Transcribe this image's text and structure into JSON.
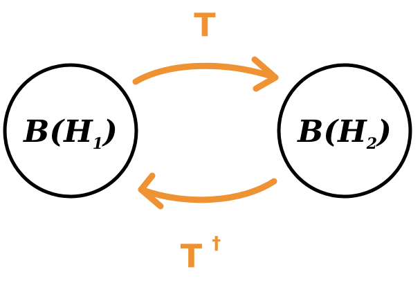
{
  "colors": {
    "node_stroke": "#000000",
    "arrow": "#EE9233"
  },
  "nodes": [
    {
      "id": "h1",
      "label_main": "B(H",
      "label_sub": "1",
      "label_close": ")"
    },
    {
      "id": "h2",
      "label_main": "B(H",
      "label_sub": "2",
      "label_close": ")"
    }
  ],
  "arrows": {
    "forward": {
      "label": "T",
      "from": "h1",
      "to": "h2"
    },
    "backward": {
      "label": "T",
      "superscript": "†",
      "from": "h2",
      "to": "h1"
    }
  }
}
